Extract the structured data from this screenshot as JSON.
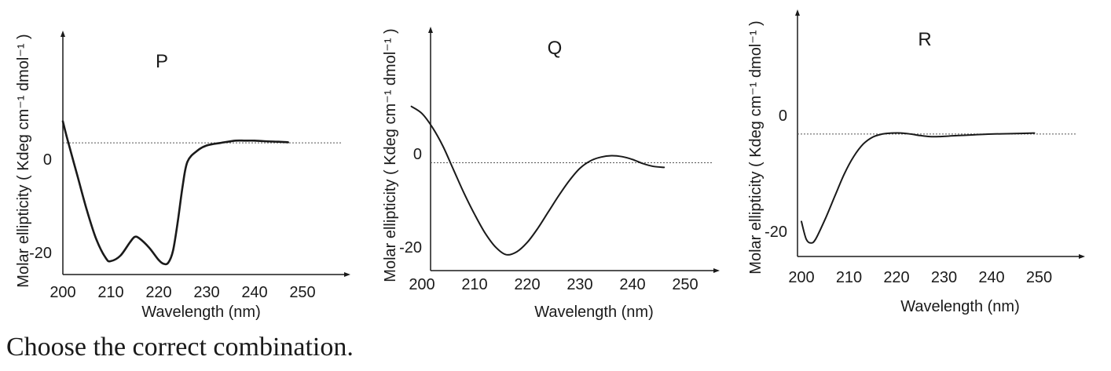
{
  "chart_data": [
    {
      "type": "line",
      "title": "P",
      "xlabel": "Wavelength (nm)",
      "ylabel": "Molar ellipticity ( Kdeg cm⁻¹ dmol⁻¹ )",
      "xlim": [
        198,
        252
      ],
      "ylim": [
        -24.5,
        20
      ],
      "x_ticks": [
        "200",
        "210",
        "220",
        "230",
        "240",
        "250"
      ],
      "y_ticks": [
        {
          "value": 0,
          "label": "0"
        },
        {
          "value": -20,
          "label": "-20"
        }
      ],
      "reference_line_y": 0,
      "series": [
        {
          "x": [
            200,
            201,
            203,
            205,
            207,
            209,
            210,
            212,
            214,
            215,
            216,
            218,
            220,
            221,
            222,
            223,
            224,
            225,
            226,
            228,
            230,
            233,
            236,
            238,
            240,
            242,
            245,
            247
          ],
          "y": [
            4,
            0.5,
            -6,
            -12.5,
            -18,
            -21.5,
            -22,
            -21,
            -18.5,
            -17.5,
            -17.8,
            -19.5,
            -21.8,
            -22.5,
            -22.3,
            -20,
            -14.5,
            -8,
            -3.5,
            -1.5,
            -0.5,
            0,
            0.4,
            0.4,
            0.4,
            0.3,
            0.2,
            0.1
          ]
        }
      ]
    },
    {
      "type": "line",
      "title": "Q",
      "xlabel": "Wavelength (nm)",
      "ylabel": "Molar ellipticity ( Kdeg cm⁻¹ dmol⁻¹ )",
      "xlim": [
        198,
        252
      ],
      "ylim": [
        -23,
        28
      ],
      "x_ticks": [
        "200",
        "210",
        "220",
        "230",
        "240",
        "250"
      ],
      "y_ticks": [
        {
          "value": 0,
          "label": "0"
        },
        {
          "value": -20,
          "label": "-20"
        }
      ],
      "reference_line_y": 0,
      "series": [
        {
          "x": [
            198,
            200,
            202,
            204,
            206,
            208,
            210,
            212,
            214,
            216,
            218,
            220,
            222,
            224,
            226,
            228,
            230,
            232,
            234,
            236,
            238,
            240,
            242,
            244,
            246
          ],
          "y": [
            12,
            10.5,
            7.5,
            3.5,
            -1.5,
            -6.5,
            -11,
            -15,
            -18,
            -19.6,
            -19,
            -17,
            -14,
            -10.5,
            -7,
            -3.8,
            -1.2,
            0.4,
            1.2,
            1.5,
            1.3,
            0.7,
            -0.2,
            -0.8,
            -1
          ]
        }
      ]
    },
    {
      "type": "line",
      "title": "R",
      "xlabel": "Wavelength (nm)",
      "ylabel": "Molar ellipticity ( Kdeg cm⁻¹ dmol⁻¹ )",
      "xlim": [
        198,
        252
      ],
      "ylim": [
        -24.5,
        24
      ],
      "x_ticks": [
        "200",
        "210",
        "220",
        "230",
        "240",
        "250"
      ],
      "y_ticks": [
        {
          "value": 0,
          "label": "0"
        },
        {
          "value": -20,
          "label": "-20"
        }
      ],
      "reference_line_y": 0,
      "series": [
        {
          "x": [
            200,
            201,
            202,
            203,
            205,
            207,
            209,
            211,
            213,
            215,
            217,
            219,
            221,
            223,
            225,
            227,
            229,
            231,
            233,
            235,
            240,
            245,
            249
          ],
          "y": [
            -17.5,
            -21,
            -21.8,
            -21,
            -17,
            -12.5,
            -8,
            -4.5,
            -2,
            -0.6,
            0,
            0.2,
            0.2,
            0,
            -0.3,
            -0.5,
            -0.5,
            -0.4,
            -0.3,
            -0.2,
            0,
            0.1,
            0.2
          ]
        }
      ]
    }
  ],
  "footer": {
    "text": "Choose the correct combination."
  }
}
